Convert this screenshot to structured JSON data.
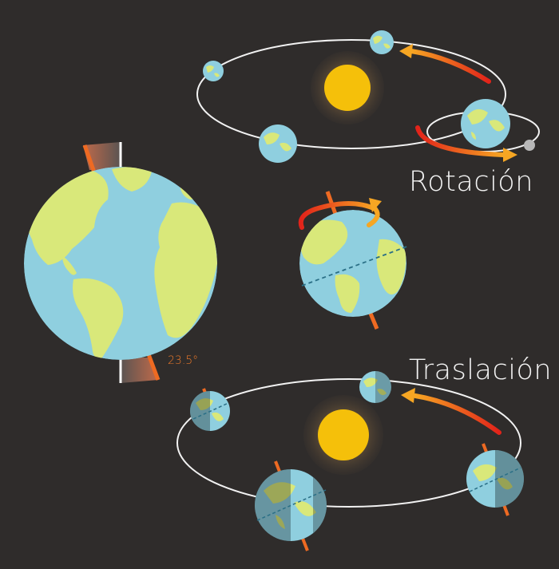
{
  "labels": {
    "rotation": "Rotación",
    "translation": "Traslación",
    "tilt": "23.5°"
  },
  "colors": {
    "background": "#2f2c2b",
    "ocean": "#8fcfdf",
    "land": "#d9e87a",
    "sun_core": "#f5c00a",
    "axis": "#ee6a22",
    "orbit": "#f2f2f2",
    "arrow_start": "#e2231a",
    "arrow_end": "#f6a623",
    "moon": "#b8b8b8"
  }
}
